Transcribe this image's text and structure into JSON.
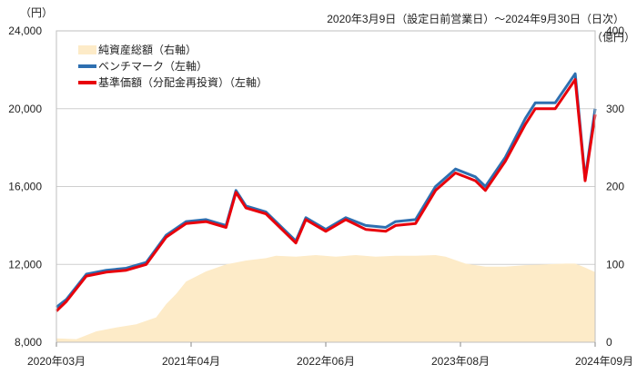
{
  "header": {
    "date_range": "2020年3月9日（設定日前営業日）～2024年9月30日（日次）"
  },
  "axes": {
    "left_unit": "（円）",
    "right_unit": "（億円）"
  },
  "chart_data": {
    "type": "line",
    "x_tick_labels": [
      "2020年03月",
      "2021年04月",
      "2022年06月",
      "2023年08月",
      "2024年09月"
    ],
    "left_axis": {
      "ylim": [
        8000,
        24000
      ],
      "ticks": [
        "8,000",
        "12,000",
        "16,000",
        "20,000",
        "24,000"
      ]
    },
    "right_axis": {
      "ylim": [
        0,
        400
      ],
      "ticks": [
        "0",
        "100",
        "200",
        "300",
        "400"
      ]
    },
    "grid": true,
    "legend_position": "top-left",
    "series": [
      {
        "name": "純資産総額（右軸）",
        "type": "area",
        "axis": "right",
        "color": "#fdebc8",
        "points": [
          [
            "2020-03",
            5
          ],
          [
            "2020-05",
            4
          ],
          [
            "2020-07",
            14
          ],
          [
            "2020-09",
            19
          ],
          [
            "2020-11",
            23
          ],
          [
            "2021-01",
            32
          ],
          [
            "2021-02",
            49
          ],
          [
            "2021-03",
            62
          ],
          [
            "2021-04",
            78
          ],
          [
            "2021-06",
            91
          ],
          [
            "2021-08",
            100
          ],
          [
            "2021-10",
            105
          ],
          [
            "2021-12",
            108
          ],
          [
            "2022-01",
            111
          ],
          [
            "2022-03",
            110
          ],
          [
            "2022-05",
            112
          ],
          [
            "2022-07",
            110
          ],
          [
            "2022-09",
            112
          ],
          [
            "2022-11",
            110
          ],
          [
            "2023-01",
            111
          ],
          [
            "2023-03",
            111
          ],
          [
            "2023-05",
            112
          ],
          [
            "2023-06",
            110
          ],
          [
            "2023-08",
            101
          ],
          [
            "2023-10",
            97
          ],
          [
            "2023-12",
            97
          ],
          [
            "2024-02",
            99
          ],
          [
            "2024-04",
            100
          ],
          [
            "2024-06",
            101
          ],
          [
            "2024-07",
            101
          ],
          [
            "2024-08",
            96
          ],
          [
            "2024-09",
            90
          ]
        ]
      },
      {
        "name": "ベンチマーク（左軸）",
        "type": "line",
        "axis": "left",
        "color": "#2e6fb0",
        "points": [
          [
            "2020-03",
            9800
          ],
          [
            "2020-04",
            10200
          ],
          [
            "2020-06",
            11500
          ],
          [
            "2020-08",
            11700
          ],
          [
            "2020-10",
            11800
          ],
          [
            "2020-12",
            12100
          ],
          [
            "2021-02",
            13500
          ],
          [
            "2021-04",
            14200
          ],
          [
            "2021-06",
            14300
          ],
          [
            "2021-08",
            14000
          ],
          [
            "2021-09",
            15800
          ],
          [
            "2021-10",
            15000
          ],
          [
            "2021-12",
            14700
          ],
          [
            "2022-02",
            13700
          ],
          [
            "2022-03",
            13200
          ],
          [
            "2022-04",
            14400
          ],
          [
            "2022-06",
            13800
          ],
          [
            "2022-08",
            14400
          ],
          [
            "2022-10",
            14000
          ],
          [
            "2022-12",
            13900
          ],
          [
            "2023-01",
            14200
          ],
          [
            "2023-03",
            14300
          ],
          [
            "2023-05",
            16000
          ],
          [
            "2023-07",
            16900
          ],
          [
            "2023-09",
            16500
          ],
          [
            "2023-10",
            16000
          ],
          [
            "2023-12",
            17500
          ],
          [
            "2024-02",
            19500
          ],
          [
            "2024-03",
            20300
          ],
          [
            "2024-05",
            20300
          ],
          [
            "2024-07",
            21800
          ],
          [
            "2024-08",
            16400
          ],
          [
            "2024-09",
            20000
          ]
        ]
      },
      {
        "name": "基準価額（分配金再投資）（左軸）",
        "type": "line",
        "axis": "left",
        "color": "#e8000b",
        "points": [
          [
            "2020-03",
            9600
          ],
          [
            "2020-04",
            10100
          ],
          [
            "2020-06",
            11400
          ],
          [
            "2020-08",
            11600
          ],
          [
            "2020-10",
            11700
          ],
          [
            "2020-12",
            12000
          ],
          [
            "2021-02",
            13400
          ],
          [
            "2021-04",
            14100
          ],
          [
            "2021-06",
            14200
          ],
          [
            "2021-08",
            13900
          ],
          [
            "2021-09",
            15700
          ],
          [
            "2021-10",
            14900
          ],
          [
            "2021-12",
            14600
          ],
          [
            "2022-02",
            13600
          ],
          [
            "2022-03",
            13100
          ],
          [
            "2022-04",
            14300
          ],
          [
            "2022-06",
            13700
          ],
          [
            "2022-08",
            14300
          ],
          [
            "2022-10",
            13800
          ],
          [
            "2022-12",
            13700
          ],
          [
            "2023-01",
            14000
          ],
          [
            "2023-03",
            14100
          ],
          [
            "2023-05",
            15800
          ],
          [
            "2023-07",
            16700
          ],
          [
            "2023-09",
            16300
          ],
          [
            "2023-10",
            15800
          ],
          [
            "2023-12",
            17300
          ],
          [
            "2024-02",
            19200
          ],
          [
            "2024-03",
            20000
          ],
          [
            "2024-05",
            20000
          ],
          [
            "2024-07",
            21500
          ],
          [
            "2024-08",
            16300
          ],
          [
            "2024-09",
            19700
          ]
        ]
      }
    ]
  }
}
